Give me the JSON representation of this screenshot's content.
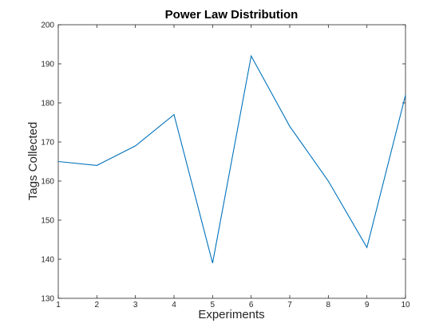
{
  "chart_data": {
    "type": "line",
    "title": "Power Law Distribution",
    "xlabel": "Experiments",
    "ylabel": "Tags Collected",
    "xlim": [
      1,
      10
    ],
    "ylim": [
      130,
      200
    ],
    "xticks": [
      "1",
      "2",
      "3",
      "4",
      "5",
      "6",
      "7",
      "8",
      "9",
      "10"
    ],
    "yticks": [
      "130",
      "140",
      "150",
      "160",
      "170",
      "180",
      "190",
      "200"
    ],
    "grid": false,
    "series": [
      {
        "x": [
          1,
          2,
          3,
          4,
          5,
          6,
          7,
          8,
          9,
          10
        ],
        "values": [
          165,
          164,
          169,
          177,
          139,
          192,
          174,
          160,
          143,
          182
        ],
        "color": "#0072bd"
      }
    ]
  }
}
